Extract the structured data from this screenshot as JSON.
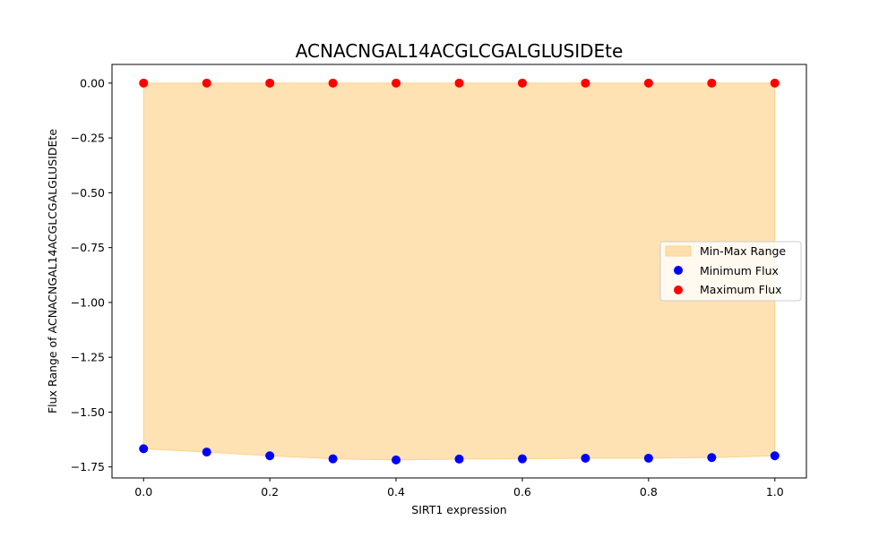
{
  "chart_data": {
    "type": "scatter",
    "title": "ACNACNGAL14ACGLCGALGLUSIDEte",
    "xlabel": "SIRT1 expression",
    "ylabel": "Flux Range of ACNACNGAL14ACGLCGALGLUSIDEte",
    "xlim": [
      -0.05,
      1.05
    ],
    "ylim": [
      -1.8,
      0.085
    ],
    "x_ticks": [
      "0.0",
      "0.2",
      "0.4",
      "0.6",
      "0.8",
      "1.0"
    ],
    "y_ticks": [
      "0.00",
      "−0.25",
      "−0.50",
      "−0.75",
      "−1.00",
      "−1.25",
      "−1.50",
      "−1.75"
    ],
    "x": [
      0.0,
      0.1,
      0.2,
      0.3,
      0.4,
      0.5,
      0.6,
      0.7,
      0.8,
      0.9,
      1.0
    ],
    "series": [
      {
        "name": "Min-Max Range",
        "kind": "band",
        "color": "#fdd38a"
      },
      {
        "name": "Minimum Flux",
        "kind": "points",
        "color": "#0000ff",
        "values": [
          -1.667,
          -1.682,
          -1.699,
          -1.713,
          -1.718,
          -1.714,
          -1.713,
          -1.71,
          -1.71,
          -1.707,
          -1.699
        ]
      },
      {
        "name": "Maximum Flux",
        "kind": "points",
        "color": "#ff0000",
        "values": [
          0,
          0,
          0,
          0,
          0,
          0,
          0,
          0,
          0,
          0,
          0
        ]
      }
    ],
    "legend_position": "center-right",
    "grid": false
  }
}
